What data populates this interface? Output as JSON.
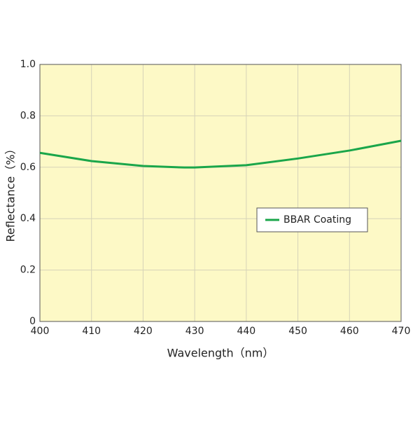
{
  "chart_data": {
    "type": "line",
    "x_label": "Wavelength（nm）",
    "y_label": "Reflectance（%）",
    "x": [
      400,
      410,
      420,
      428,
      430,
      440,
      450,
      460,
      470
    ],
    "series": [
      {
        "name": "BBAR Coating",
        "color": "#1aa64a",
        "values": [
          0.656,
          0.624,
          0.605,
          0.599,
          0.599,
          0.608,
          0.634,
          0.665,
          0.703
        ]
      }
    ],
    "xlim": [
      400,
      470
    ],
    "xticks": [
      400,
      410,
      420,
      430,
      440,
      450,
      460,
      470
    ],
    "ylim": [
      0,
      1
    ],
    "yticks": [
      0,
      0.2,
      0.4,
      0.6,
      0.8,
      {
        "value": 1,
        "label": "1.0"
      }
    ],
    "grid": true,
    "legend": "right",
    "background": "#fdf9c6"
  }
}
